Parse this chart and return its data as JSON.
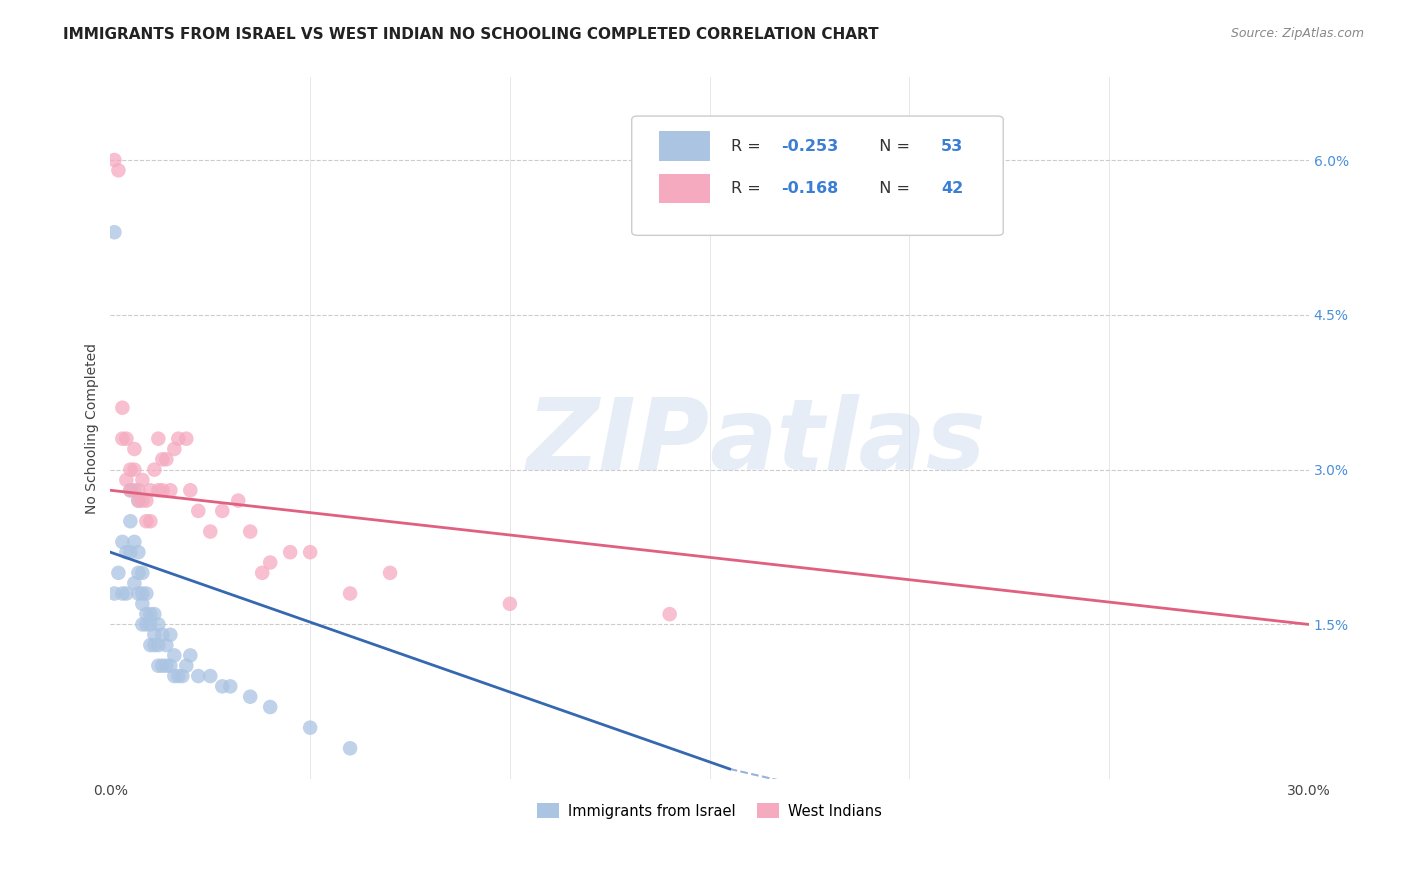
{
  "title": "IMMIGRANTS FROM ISRAEL VS WEST INDIAN NO SCHOOLING COMPLETED CORRELATION CHART",
  "source": "Source: ZipAtlas.com",
  "ylabel": "No Schooling Completed",
  "ytick_vals": [
    0.015,
    0.03,
    0.045,
    0.06
  ],
  "ytick_labels": [
    "1.5%",
    "3.0%",
    "4.5%",
    "6.0%"
  ],
  "xlim": [
    0.0,
    0.3
  ],
  "ylim": [
    0.0,
    0.068
  ],
  "legend_r1_val": "-0.253",
  "legend_n1": "53",
  "legend_r2_val": "-0.168",
  "legend_n2": "42",
  "israel_color": "#aac4e2",
  "west_indian_color": "#f5aabf",
  "israel_line_color": "#3568b0",
  "west_indian_line_color": "#e06080",
  "israel_line_x": [
    0.0,
    0.155
  ],
  "israel_line_y": [
    0.022,
    0.001
  ],
  "west_indian_line_x": [
    0.0,
    0.3
  ],
  "west_indian_line_y": [
    0.028,
    0.015
  ],
  "background_color": "#ffffff",
  "israel_x": [
    0.001,
    0.001,
    0.002,
    0.003,
    0.003,
    0.004,
    0.004,
    0.005,
    0.005,
    0.005,
    0.006,
    0.006,
    0.006,
    0.007,
    0.007,
    0.007,
    0.007,
    0.008,
    0.008,
    0.008,
    0.008,
    0.009,
    0.009,
    0.009,
    0.01,
    0.01,
    0.01,
    0.011,
    0.011,
    0.011,
    0.012,
    0.012,
    0.012,
    0.013,
    0.013,
    0.014,
    0.014,
    0.015,
    0.015,
    0.016,
    0.016,
    0.017,
    0.018,
    0.019,
    0.02,
    0.022,
    0.025,
    0.028,
    0.03,
    0.035,
    0.04,
    0.05,
    0.06
  ],
  "israel_y": [
    0.053,
    0.018,
    0.02,
    0.023,
    0.018,
    0.022,
    0.018,
    0.028,
    0.025,
    0.022,
    0.028,
    0.023,
    0.019,
    0.027,
    0.022,
    0.02,
    0.018,
    0.02,
    0.018,
    0.017,
    0.015,
    0.018,
    0.016,
    0.015,
    0.016,
    0.015,
    0.013,
    0.016,
    0.014,
    0.013,
    0.015,
    0.013,
    0.011,
    0.014,
    0.011,
    0.013,
    0.011,
    0.014,
    0.011,
    0.012,
    0.01,
    0.01,
    0.01,
    0.011,
    0.012,
    0.01,
    0.01,
    0.009,
    0.009,
    0.008,
    0.007,
    0.005,
    0.003
  ],
  "west_indian_x": [
    0.001,
    0.002,
    0.003,
    0.003,
    0.004,
    0.004,
    0.005,
    0.005,
    0.006,
    0.006,
    0.007,
    0.007,
    0.008,
    0.008,
    0.009,
    0.009,
    0.01,
    0.01,
    0.011,
    0.012,
    0.012,
    0.013,
    0.013,
    0.014,
    0.015,
    0.016,
    0.017,
    0.019,
    0.02,
    0.022,
    0.025,
    0.028,
    0.032,
    0.035,
    0.038,
    0.04,
    0.045,
    0.05,
    0.06,
    0.07,
    0.1,
    0.14
  ],
  "west_indian_y": [
    0.06,
    0.059,
    0.036,
    0.033,
    0.033,
    0.029,
    0.03,
    0.028,
    0.032,
    0.03,
    0.028,
    0.027,
    0.029,
    0.027,
    0.027,
    0.025,
    0.028,
    0.025,
    0.03,
    0.033,
    0.028,
    0.031,
    0.028,
    0.031,
    0.028,
    0.032,
    0.033,
    0.033,
    0.028,
    0.026,
    0.024,
    0.026,
    0.027,
    0.024,
    0.02,
    0.021,
    0.022,
    0.022,
    0.018,
    0.02,
    0.017,
    0.016
  ],
  "watermark_zip": "ZIP",
  "watermark_atlas": "atlas",
  "title_fontsize": 11,
  "axis_label_fontsize": 10,
  "tick_fontsize": 10
}
